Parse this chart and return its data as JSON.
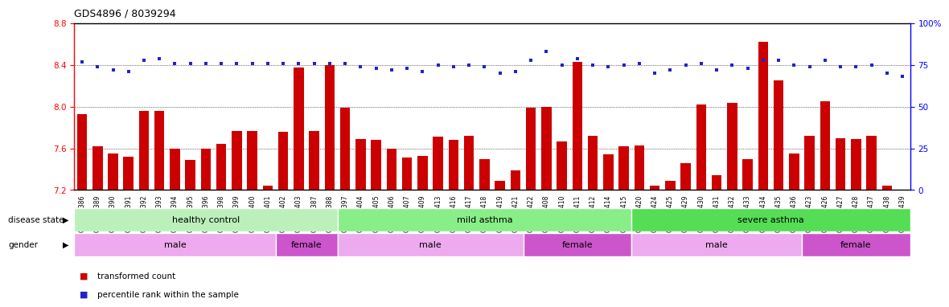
{
  "title": "GDS4896 / 8039294",
  "samples": [
    "GSM665386",
    "GSM665389",
    "GSM665390",
    "GSM665391",
    "GSM665392",
    "GSM665393",
    "GSM665394",
    "GSM665395",
    "GSM665396",
    "GSM665398",
    "GSM665399",
    "GSM665400",
    "GSM665401",
    "GSM665402",
    "GSM665403",
    "GSM665387",
    "GSM665388",
    "GSM665397",
    "GSM665404",
    "GSM665405",
    "GSM665406",
    "GSM665407",
    "GSM665409",
    "GSM665413",
    "GSM665416",
    "GSM665417",
    "GSM665418",
    "GSM665419",
    "GSM665421",
    "GSM665422",
    "GSM665408",
    "GSM665410",
    "GSM665411",
    "GSM665412",
    "GSM665414",
    "GSM665415",
    "GSM665420",
    "GSM665424",
    "GSM665425",
    "GSM665429",
    "GSM665430",
    "GSM665431",
    "GSM665432",
    "GSM665433",
    "GSM665434",
    "GSM665435",
    "GSM665436",
    "GSM665423",
    "GSM665426",
    "GSM665427",
    "GSM665428",
    "GSM665437",
    "GSM665438",
    "GSM665439"
  ],
  "bar_values": [
    7.93,
    7.62,
    7.55,
    7.52,
    7.96,
    7.96,
    7.6,
    7.49,
    7.6,
    7.64,
    7.77,
    7.77,
    7.24,
    7.76,
    8.38,
    7.77,
    8.4,
    7.99,
    7.69,
    7.68,
    7.6,
    7.51,
    7.53,
    7.71,
    7.68,
    7.72,
    7.5,
    7.29,
    7.39,
    7.99,
    8.0,
    7.67,
    8.43,
    7.72,
    7.54,
    7.62,
    7.63,
    7.24,
    7.29,
    7.46,
    8.02,
    7.34,
    8.04,
    7.5,
    8.62,
    8.25,
    7.55,
    7.72,
    8.05,
    7.7,
    7.69,
    7.72,
    7.24,
    7.18
  ],
  "percentile_values": [
    77,
    74,
    72,
    71,
    78,
    79,
    76,
    76,
    76,
    76,
    76,
    76,
    76,
    76,
    76,
    76,
    76,
    76,
    74,
    73,
    72,
    73,
    71,
    75,
    74,
    75,
    74,
    70,
    71,
    78,
    83,
    75,
    79,
    75,
    74,
    75,
    76,
    70,
    72,
    75,
    76,
    72,
    75,
    73,
    78,
    78,
    75,
    74,
    78,
    74,
    74,
    75,
    70,
    68
  ],
  "ylim_left": [
    7.2,
    8.8
  ],
  "ylim_right": [
    0,
    100
  ],
  "yticks_left": [
    7.2,
    7.6,
    8.0,
    8.4,
    8.8
  ],
  "yticks_right": [
    0,
    25,
    50,
    75,
    100
  ],
  "bar_color": "#cc0000",
  "dot_color": "#2222cc",
  "disease_state_bands": [
    {
      "label": "healthy control",
      "start": 0,
      "end": 17,
      "color": "#bbf0bb"
    },
    {
      "label": "mild asthma",
      "start": 17,
      "end": 36,
      "color": "#88ee88"
    },
    {
      "label": "severe asthma",
      "start": 36,
      "end": 54,
      "color": "#55dd55"
    }
  ],
  "gender_bands": [
    {
      "label": "male",
      "start": 0,
      "end": 13,
      "color": "#eeaaee"
    },
    {
      "label": "female",
      "start": 13,
      "end": 17,
      "color": "#cc55cc"
    },
    {
      "label": "male",
      "start": 17,
      "end": 29,
      "color": "#eeaaee"
    },
    {
      "label": "female",
      "start": 29,
      "end": 36,
      "color": "#cc55cc"
    },
    {
      "label": "male",
      "start": 36,
      "end": 47,
      "color": "#eeaaee"
    },
    {
      "label": "female",
      "start": 47,
      "end": 54,
      "color": "#cc55cc"
    }
  ],
  "legend_items": [
    {
      "label": "transformed count",
      "color": "#cc0000"
    },
    {
      "label": "percentile rank within the sample",
      "color": "#2222cc"
    }
  ]
}
